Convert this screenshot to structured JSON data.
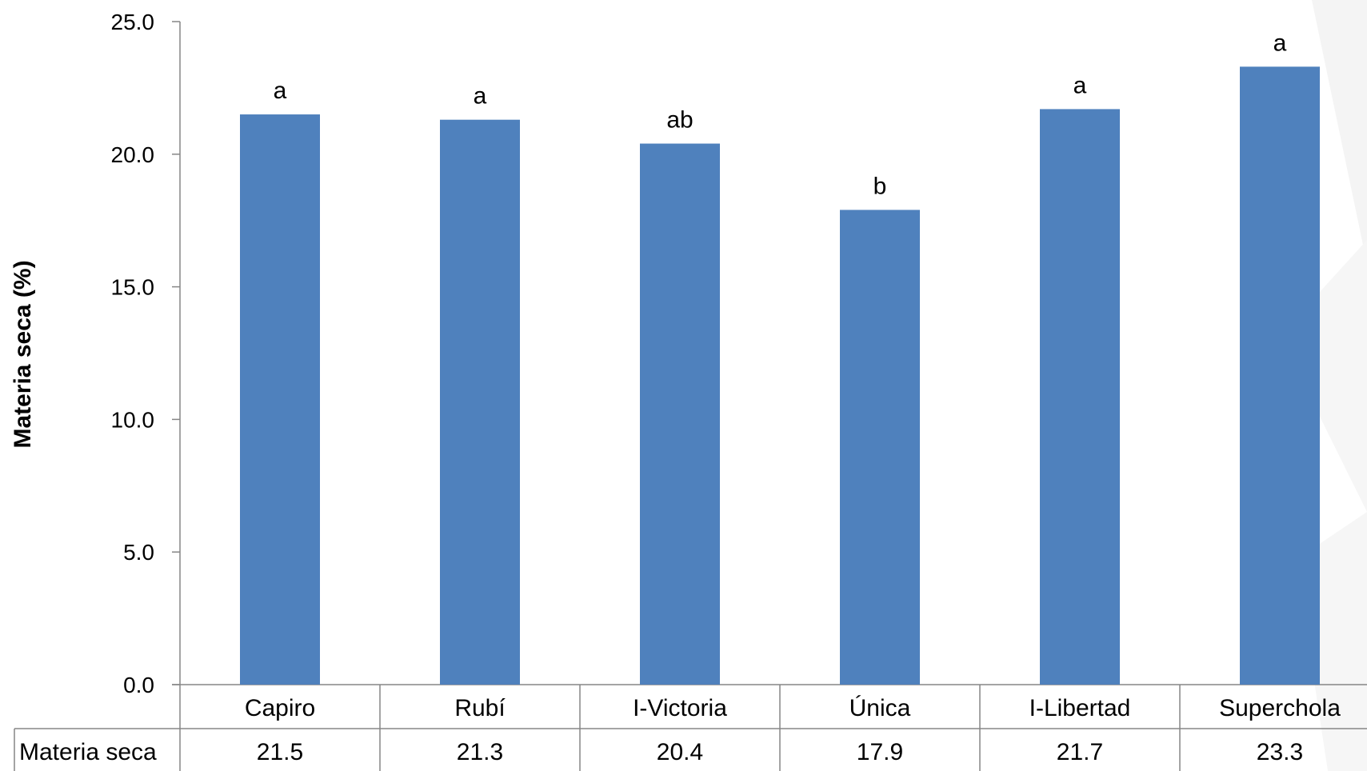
{
  "chart_data": {
    "type": "bar",
    "ylabel": "Materia  seca (%)",
    "ylim": [
      0,
      25
    ],
    "yticks": [
      "0.0",
      "5.0",
      "10.0",
      "15.0",
      "20.0",
      "25.0"
    ],
    "categories": [
      "Capiro",
      "Rubí",
      "I-Victoria",
      "Única",
      "I-Libertad",
      "Superchola"
    ],
    "series": [
      {
        "name": "Materia seca",
        "values": [
          21.5,
          21.3,
          20.4,
          17.9,
          21.7,
          23.3
        ],
        "value_labels": [
          "21.5",
          "21.3",
          "20.4",
          "17.9",
          "21.7",
          "23.3"
        ],
        "significance": [
          "a",
          "a",
          "ab",
          "b",
          "a",
          "a"
        ]
      }
    ],
    "grid": false,
    "legend": "data-table",
    "bar_color": "#4f81bd"
  }
}
